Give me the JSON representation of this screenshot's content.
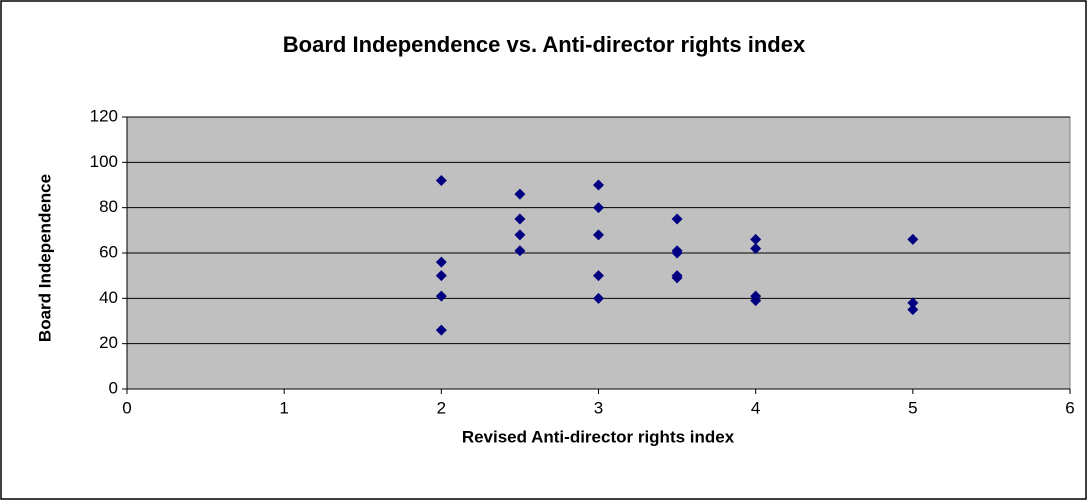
{
  "chart_data": {
    "type": "scatter",
    "title": "Board Independence vs. Anti-director rights index",
    "x_label": "Revised Anti-director rights index",
    "y_label": "Board Independence",
    "x": [
      2,
      2,
      2,
      2,
      2,
      2.5,
      2.5,
      2.5,
      2.5,
      3,
      3,
      3,
      3,
      3,
      3.5,
      3.5,
      3.5,
      3.5,
      3.5,
      4,
      4,
      4,
      4,
      5,
      5,
      5
    ],
    "y": [
      92,
      56,
      50,
      41,
      26,
      86,
      75,
      68,
      61,
      90,
      80,
      68,
      50,
      40,
      75,
      61,
      60,
      50,
      49,
      66,
      62,
      41,
      39,
      66,
      38,
      35
    ],
    "color": "#000080",
    "xlim": [
      0,
      6
    ],
    "xticks": [
      0,
      1,
      2,
      3,
      4,
      5,
      6
    ],
    "ylim": [
      0,
      120
    ],
    "yticks": [
      0,
      20,
      40,
      60,
      80,
      100,
      120
    ],
    "grid": true,
    "plot_background": "#c0c0c0"
  }
}
